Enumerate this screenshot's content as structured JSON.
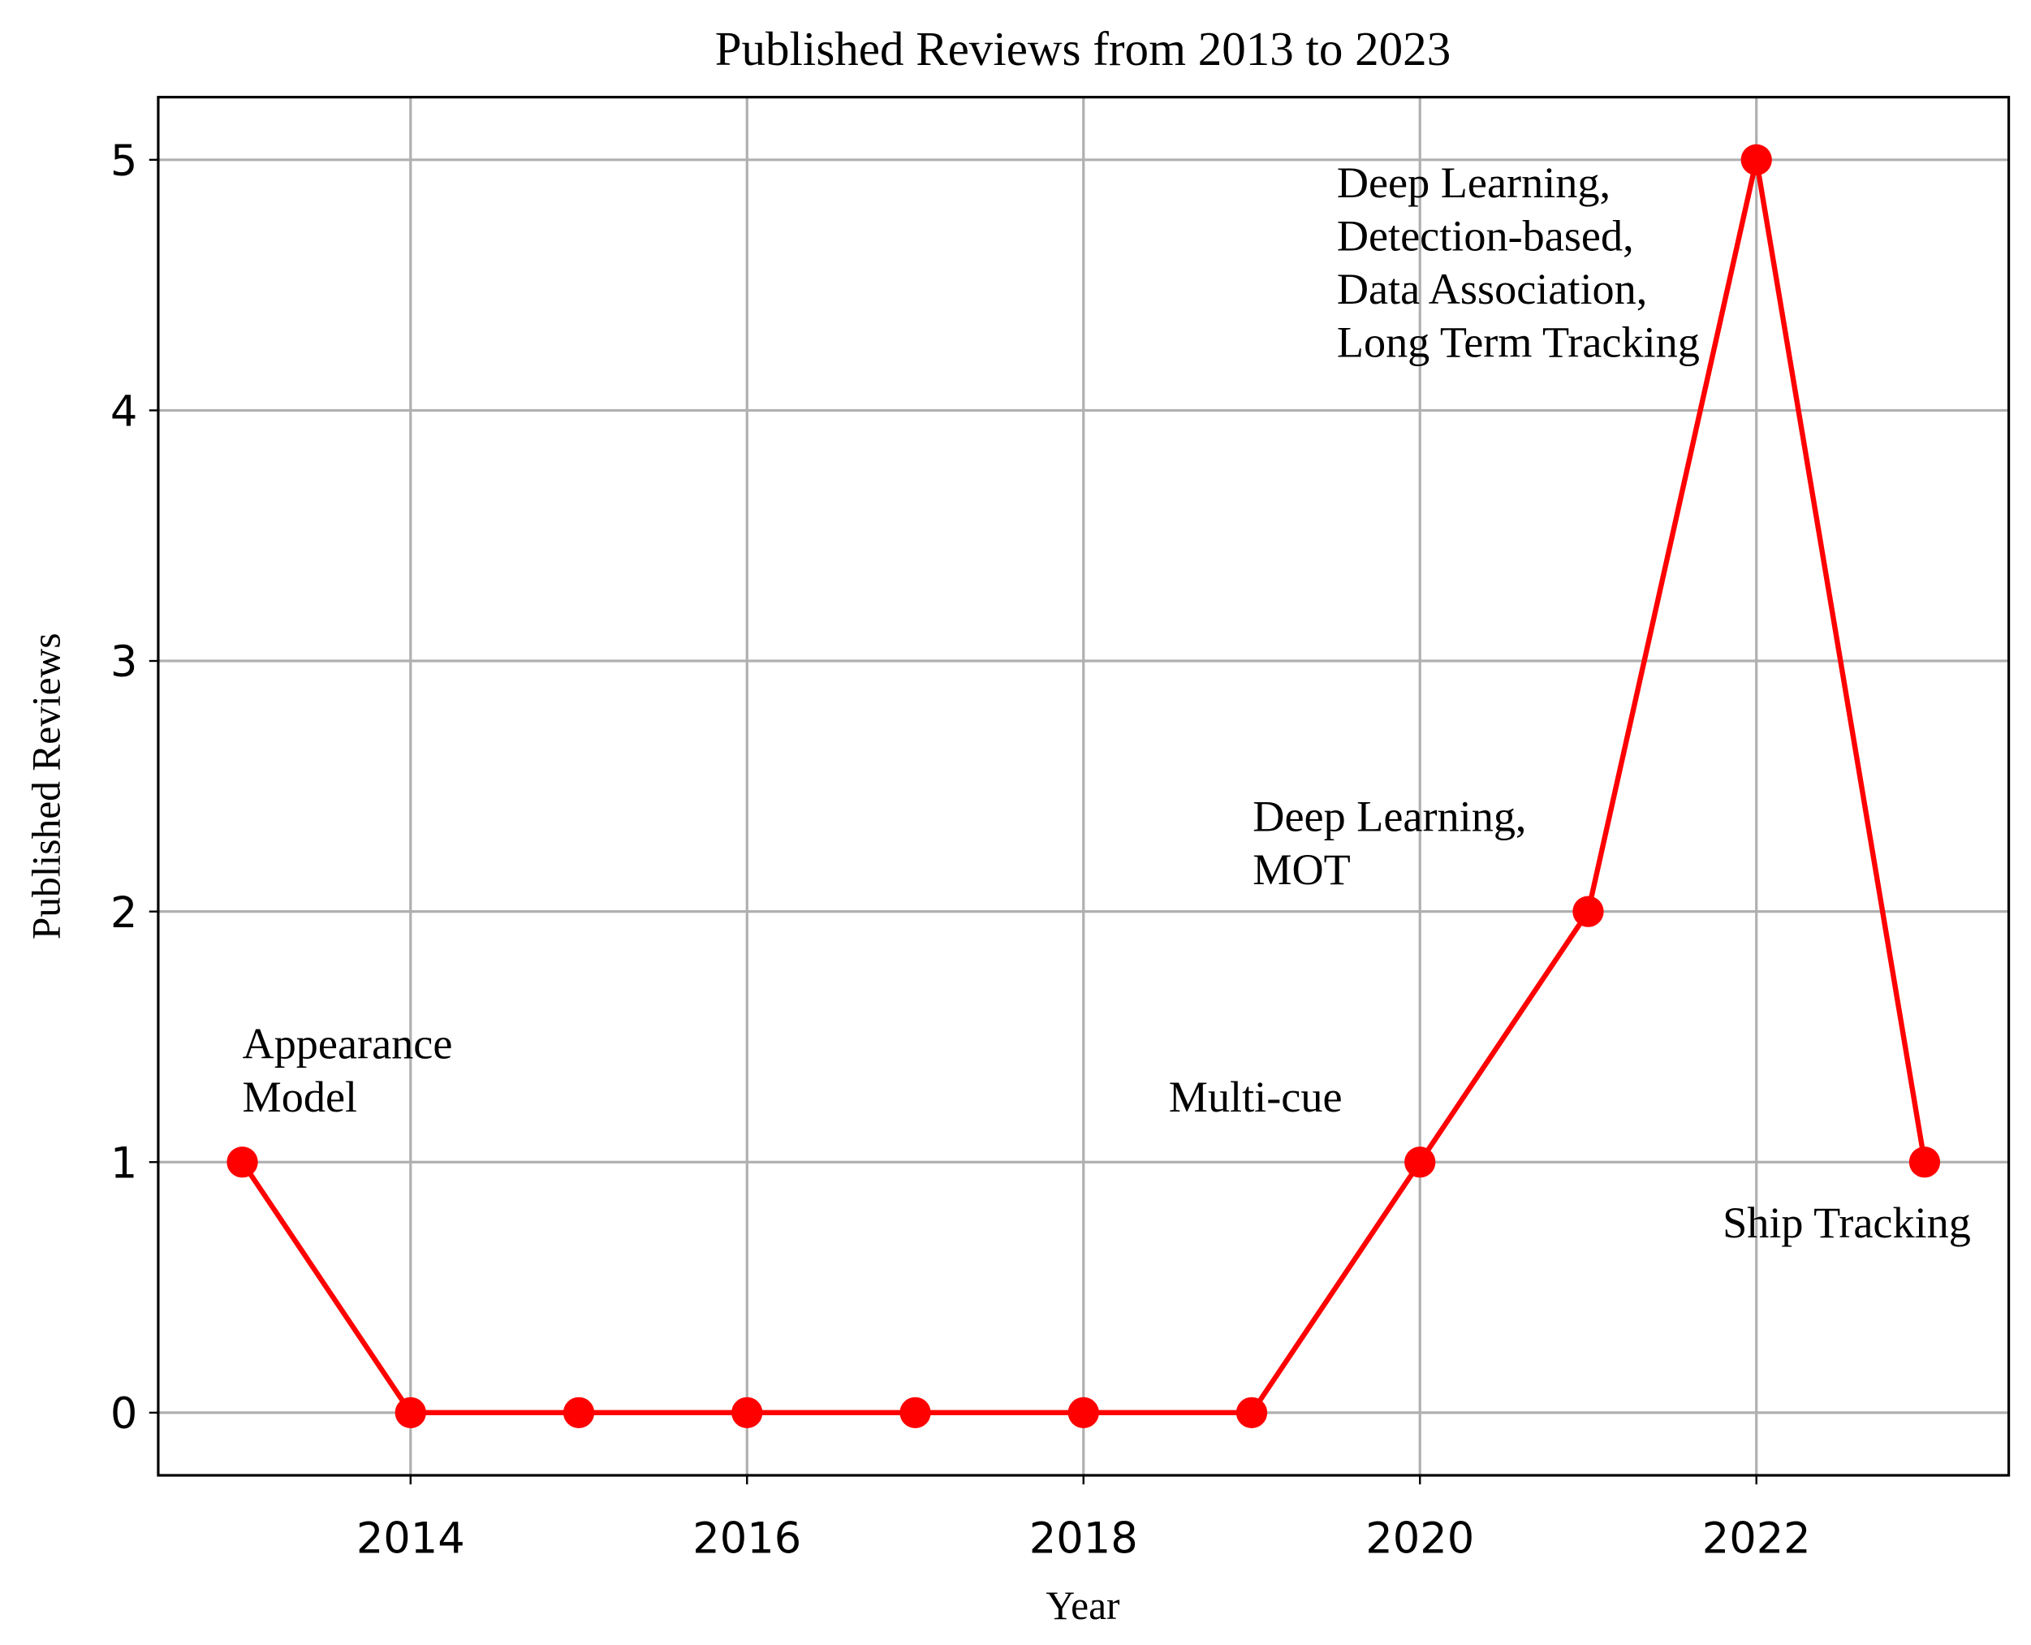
{
  "chart_data": {
    "type": "line",
    "title": "Published Reviews from 2013 to 2023",
    "xlabel": "Year",
    "ylabel": "Published Reviews",
    "x": [
      2013,
      2014,
      2015,
      2016,
      2017,
      2018,
      2019,
      2020,
      2021,
      2022,
      2023
    ],
    "series": [
      {
        "name": "Published Reviews",
        "color": "#ff0000",
        "values": [
          1,
          0,
          0,
          0,
          0,
          0,
          0,
          1,
          2,
          5,
          1
        ]
      }
    ],
    "xlim": [
      2012.5,
      2023.5
    ],
    "ylim": [
      -0.25,
      5.25
    ],
    "xticks": [
      2014,
      2016,
      2018,
      2020,
      2022
    ],
    "yticks": [
      0,
      1,
      2,
      3,
      4,
      5
    ],
    "grid": true,
    "annotations": [
      {
        "x": 2013,
        "y": 1,
        "lines": [
          "Appearance",
          "Model"
        ]
      },
      {
        "x": 2020,
        "y": 1,
        "lines": [
          "Multi-cue"
        ]
      },
      {
        "x": 2021,
        "y": 2,
        "lines": [
          "Deep Learning,",
          "MOT"
        ]
      },
      {
        "x": 2022,
        "y": 5,
        "lines": [
          "Deep Learning,",
          "Detection-based,",
          "Data Association,",
          "Long Term Tracking"
        ]
      },
      {
        "x": 2023,
        "y": 1,
        "lines": [
          "Ship Tracking"
        ]
      }
    ]
  }
}
